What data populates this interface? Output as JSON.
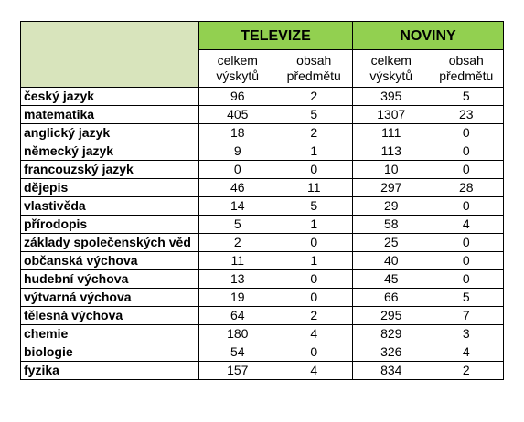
{
  "headers": {
    "televize": "TELEVIZE",
    "noviny": "NOVINY",
    "sub": [
      {
        "line1": "celkem",
        "line2": "výskytů"
      },
      {
        "line1": "obsah",
        "line2": "předmětu"
      },
      {
        "line1": "celkem",
        "line2": "výskytů"
      },
      {
        "line1": "obsah",
        "line2": "předmětu"
      }
    ]
  },
  "rows": [
    {
      "subject": "český jazyk",
      "tv_total": "96",
      "tv_content": "2",
      "news_total": "395",
      "news_content": "5"
    },
    {
      "subject": "matematika",
      "tv_total": "405",
      "tv_content": "5",
      "news_total": "1307",
      "news_content": "23"
    },
    {
      "subject": "anglický jazyk",
      "tv_total": "18",
      "tv_content": "2",
      "news_total": "111",
      "news_content": "0"
    },
    {
      "subject": "německý jazyk",
      "tv_total": "9",
      "tv_content": "1",
      "news_total": "113",
      "news_content": "0"
    },
    {
      "subject": "francouzský jazyk",
      "tv_total": "0",
      "tv_content": "0",
      "news_total": "10",
      "news_content": "0"
    },
    {
      "subject": "dějepis",
      "tv_total": "46",
      "tv_content": "11",
      "news_total": "297",
      "news_content": "28"
    },
    {
      "subject": "vlastivěda",
      "tv_total": "14",
      "tv_content": "5",
      "news_total": "29",
      "news_content": "0"
    },
    {
      "subject": "přírodopis",
      "tv_total": "5",
      "tv_content": "1",
      "news_total": "58",
      "news_content": "4"
    },
    {
      "subject": "základy společenských věd",
      "tv_total": "2",
      "tv_content": "0",
      "news_total": "25",
      "news_content": "0"
    },
    {
      "subject": "občanská výchova",
      "tv_total": "11",
      "tv_content": "1",
      "news_total": "40",
      "news_content": "0"
    },
    {
      "subject": "hudební výchova",
      "tv_total": "13",
      "tv_content": "0",
      "news_total": "45",
      "news_content": "0"
    },
    {
      "subject": "výtvarná výchova",
      "tv_total": "19",
      "tv_content": "0",
      "news_total": "66",
      "news_content": "5"
    },
    {
      "subject": "tělesná výchova",
      "tv_total": "64",
      "tv_content": "2",
      "news_total": "295",
      "news_content": "7"
    },
    {
      "subject": "chemie",
      "tv_total": "180",
      "tv_content": "4",
      "news_total": "829",
      "news_content": "3"
    },
    {
      "subject": "biologie",
      "tv_total": "54",
      "tv_content": "0",
      "news_total": "326",
      "news_content": "4"
    },
    {
      "subject": "fyzika",
      "tv_total": "157",
      "tv_content": "4",
      "news_total": "834",
      "news_content": "2"
    }
  ]
}
